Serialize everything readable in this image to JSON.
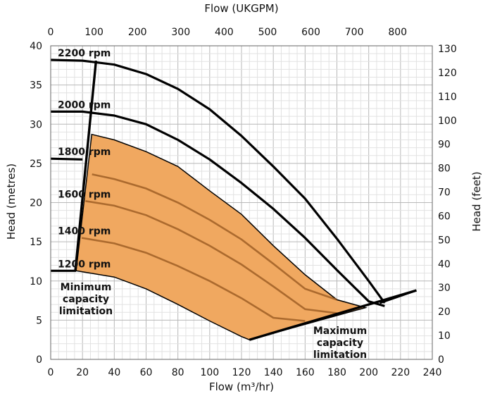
{
  "chart_data": {
    "type": "line",
    "title": "",
    "xlabel": "Flow (m³/hr)",
    "ylabel": "Head (metres)",
    "x2label": "Flow (UKGPM)",
    "y2label": "Head (feet)",
    "xlim": [
      0,
      240
    ],
    "ylim": [
      0,
      40
    ],
    "x2lim": [
      0,
      880
    ],
    "y2lim": [
      0,
      131.2
    ],
    "xticks": [
      "0",
      "20",
      "40",
      "60",
      "80",
      "100",
      "120",
      "140",
      "160",
      "180",
      "200",
      "220",
      "240"
    ],
    "yticks": [
      "0",
      "5",
      "10",
      "15",
      "20",
      "25",
      "30",
      "35",
      "40"
    ],
    "x2ticks": [
      "0",
      "100",
      "200",
      "300",
      "400",
      "500",
      "600",
      "700",
      "800"
    ],
    "y2ticks": [
      "0",
      "10",
      "20",
      "30",
      "40",
      "50",
      "60",
      "70",
      "80",
      "90",
      "100",
      "110",
      "120",
      "130"
    ],
    "grid": true,
    "series": [
      {
        "name": "2200 rpm",
        "x": [
          0,
          20,
          40,
          60,
          80,
          100,
          120,
          140,
          160,
          180,
          200,
          210
        ],
        "y": [
          38.2,
          38.1,
          37.6,
          36.4,
          34.5,
          31.9,
          28.5,
          24.6,
          20.5,
          15.4,
          10.0,
          7.2
        ]
      },
      {
        "name": "2000 rpm",
        "x": [
          0,
          20,
          40,
          60,
          80,
          100,
          120,
          140,
          160,
          180,
          200,
          210
        ],
        "y": [
          31.6,
          31.6,
          31.1,
          30.0,
          28.0,
          25.5,
          22.5,
          19.2,
          15.5,
          11.4,
          7.4,
          6.8
        ]
      },
      {
        "name": "1800 rpm",
        "x": [
          0,
          20,
          40,
          60,
          80,
          100,
          120,
          140,
          160,
          180,
          200
        ],
        "y": [
          25.6,
          25.5,
          25.0,
          23.8,
          22.0,
          19.8,
          17.3,
          14.3,
          11.0,
          7.6,
          6.6
        ]
      },
      {
        "name": "1600 rpm",
        "x": [
          0,
          20,
          40,
          60,
          80,
          100,
          120,
          140,
          160,
          180
        ],
        "y": [
          20.2,
          20.1,
          19.6,
          18.4,
          16.6,
          14.5,
          12.1,
          9.3,
          6.4,
          5.9
        ]
      },
      {
        "name": "1400 rpm",
        "x": [
          0,
          20,
          40,
          60,
          80,
          100,
          120,
          140,
          160
        ],
        "y": [
          15.5,
          15.4,
          14.8,
          13.6,
          11.9,
          10.0,
          7.8,
          5.3,
          4.9
        ]
      },
      {
        "name": "1200 rpm",
        "x": [
          0,
          20,
          40,
          60,
          80,
          100,
          120,
          125
        ],
        "y": [
          11.3,
          11.2,
          10.5,
          9.0,
          7.0,
          4.9,
          2.9,
          2.5
        ]
      }
    ],
    "limits": {
      "minimum": {
        "label": "Minimum capacity limitation",
        "x": [
          15.5,
          28.5
        ],
        "y": [
          11.3,
          38.1
        ]
      },
      "maximum": {
        "label": "Maximum capacity limitation",
        "x": [
          125,
          230
        ],
        "y": [
          2.5,
          8.8
        ]
      }
    },
    "region_color": "#f0a860",
    "line_color": "#000000",
    "inner_line_color": "#9a5a22"
  }
}
